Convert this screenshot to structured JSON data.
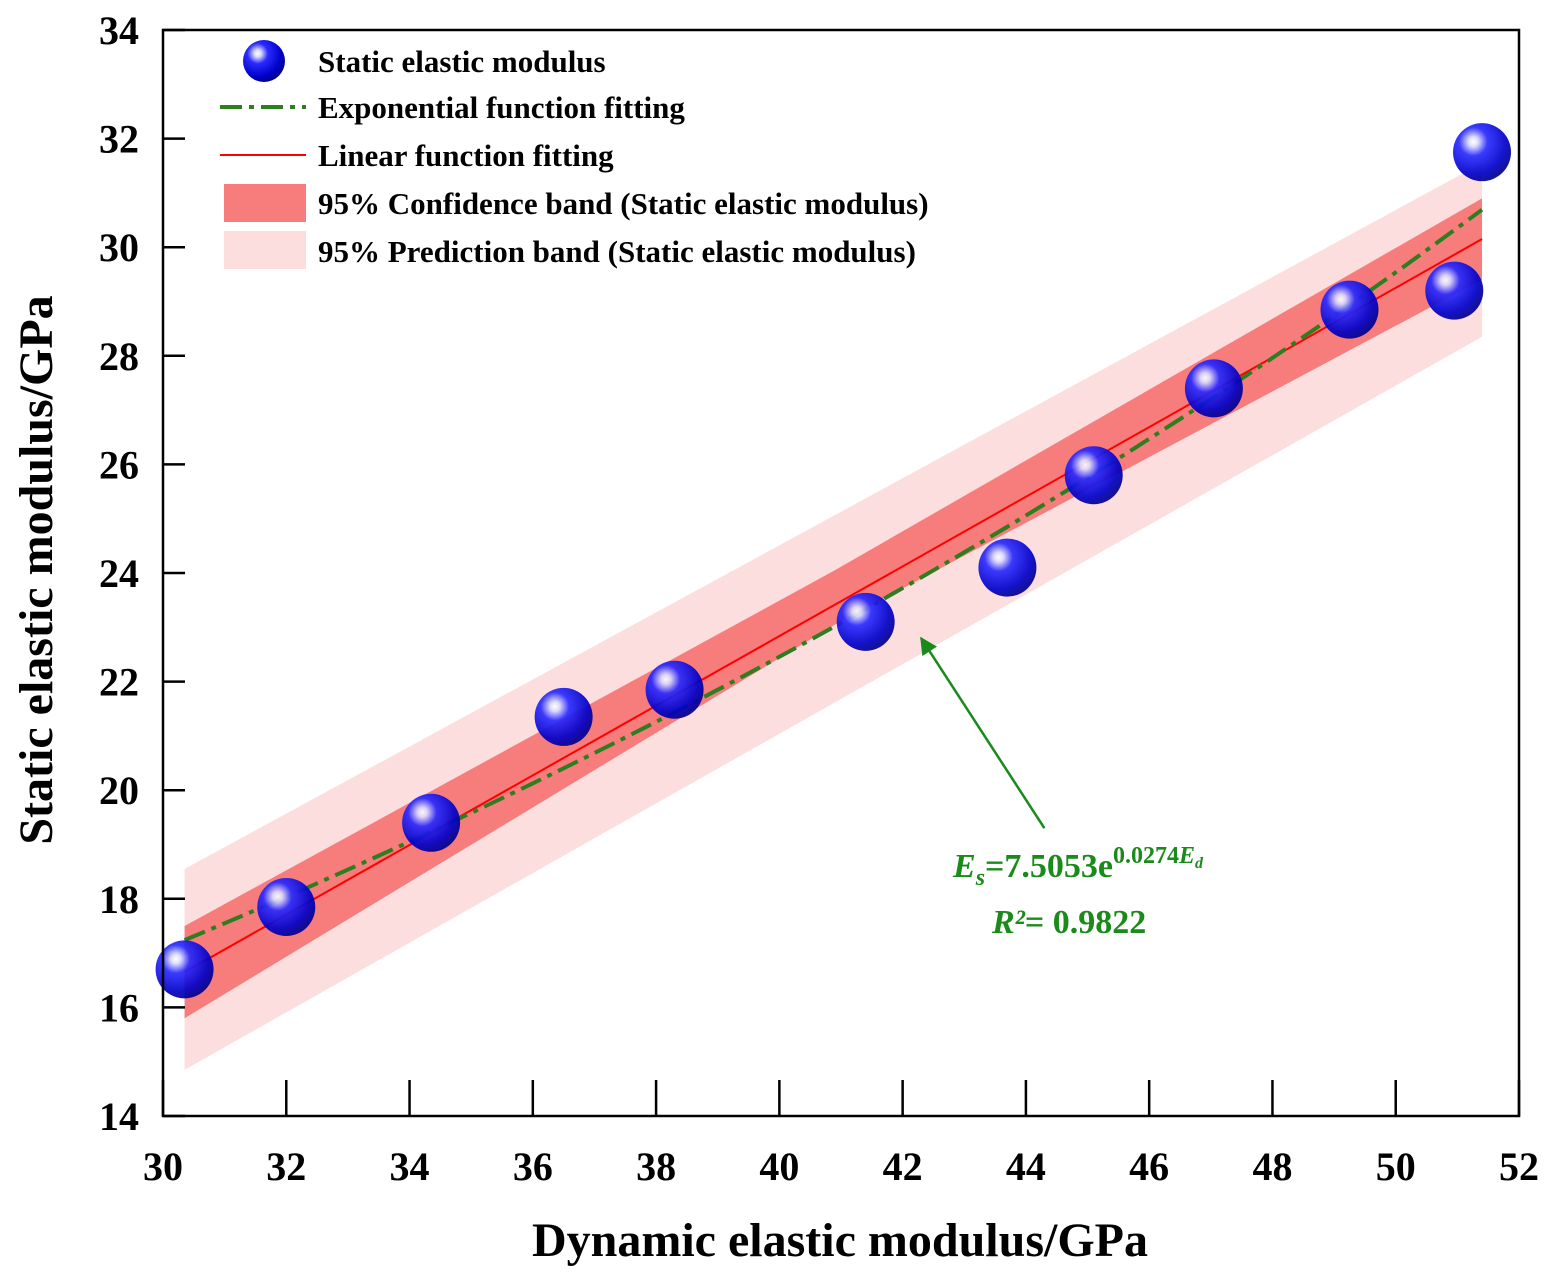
{
  "chart_data": {
    "type": "scatter",
    "xlabel": "Dynamic elastic modulus/GPa",
    "ylabel": "Static elastic modulus/GPa",
    "xlim": [
      30,
      52
    ],
    "ylim": [
      14,
      34
    ],
    "xticks": [
      "30",
      "32",
      "34",
      "36",
      "38",
      "40",
      "42",
      "44",
      "46",
      "48",
      "50",
      "52"
    ],
    "yticks": [
      "14",
      "16",
      "18",
      "20",
      "22",
      "24",
      "26",
      "28",
      "30",
      "32",
      "34"
    ],
    "grid": false,
    "legend_position": "top-left",
    "series": [
      {
        "name": "Static elastic modulus",
        "kind": "scatter",
        "x": [
          30.35,
          32.0,
          34.35,
          36.5,
          38.3,
          41.4,
          43.7,
          45.1,
          47.05,
          49.25,
          50.95,
          51.4
        ],
        "y": [
          16.7,
          17.85,
          19.4,
          21.35,
          21.85,
          23.1,
          24.1,
          25.8,
          27.4,
          28.85,
          29.2,
          31.75
        ],
        "color": "#1a1aff"
      },
      {
        "name": "Exponential function fitting",
        "kind": "line",
        "style": "dash-dot",
        "equation": {
          "a": 7.5053,
          "b": 0.0274
        },
        "x_range": [
          30.35,
          51.4
        ],
        "color": "#2e7d1e"
      },
      {
        "name": "Linear function fitting",
        "kind": "line",
        "style": "solid",
        "x": [
          30.35,
          51.4
        ],
        "y": [
          16.65,
          30.15
        ],
        "color": "#ff0000"
      },
      {
        "name": "95% Confidence band (Static elastic modulus)",
        "kind": "band",
        "x": [
          30.35,
          40.9,
          51.4
        ],
        "upper": [
          17.5,
          24.05,
          30.9
        ],
        "lower": [
          15.8,
          23.05,
          29.4
        ],
        "color": "#f77c7c"
      },
      {
        "name": "95% Prediction band (Static elastic modulus)",
        "kind": "band",
        "x": [
          30.35,
          51.4
        ],
        "upper": [
          18.55,
          31.55
        ],
        "lower": [
          14.85,
          28.35
        ],
        "color": "#fcdede"
      }
    ],
    "annotation": {
      "equation_prefix": "E",
      "equation_sub": "s",
      "equation_body": "=7.5053e",
      "equation_exp": "0.0274",
      "equation_exp_var": "E",
      "equation_exp_sub": "d",
      "r2_label": "R²",
      "r2_value": "= 0.9822",
      "arrow_tip": {
        "x": 42.3,
        "y": 22.8
      },
      "arrow_tail": {
        "x": 44.3,
        "y": 19.3
      },
      "color": "#1a8a1a"
    }
  }
}
